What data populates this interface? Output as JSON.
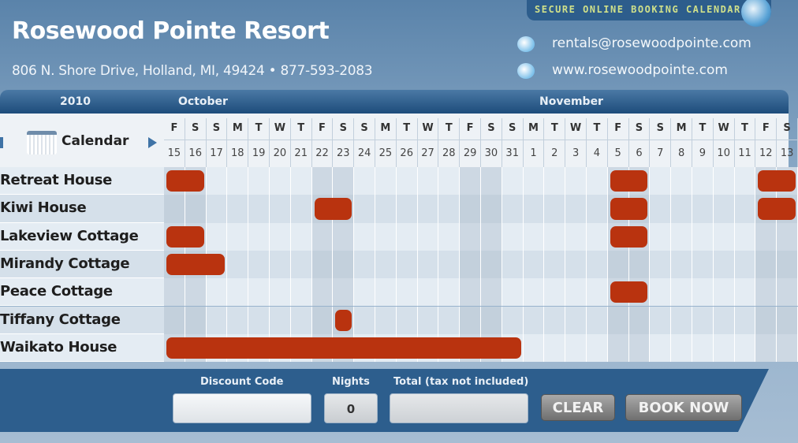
{
  "header": {
    "title": "Rosewood Pointe Resort",
    "address": "806 N. Shore Drive, Holland, MI, 49424 • 877-593-2083",
    "badge": "SECURE ONLINE BOOKING CALENDAR",
    "email": "rentals@rosewoodpointe.com",
    "website": "www.rosewoodpointe.com"
  },
  "calendar": {
    "year": "2010",
    "months": [
      "October",
      "November"
    ],
    "label": "Calendar",
    "days": [
      [
        "F",
        "15"
      ],
      [
        "S",
        "16"
      ],
      [
        "S",
        "17"
      ],
      [
        "M",
        "18"
      ],
      [
        "T",
        "19"
      ],
      [
        "W",
        "20"
      ],
      [
        "T",
        "21"
      ],
      [
        "F",
        "22"
      ],
      [
        "S",
        "23"
      ],
      [
        "S",
        "24"
      ],
      [
        "M",
        "25"
      ],
      [
        "T",
        "26"
      ],
      [
        "W",
        "27"
      ],
      [
        "T",
        "28"
      ],
      [
        "F",
        "29"
      ],
      [
        "S",
        "30"
      ],
      [
        "S",
        "31"
      ],
      [
        "M",
        "1"
      ],
      [
        "T",
        "2"
      ],
      [
        "W",
        "3"
      ],
      [
        "T",
        "4"
      ],
      [
        "F",
        "5"
      ],
      [
        "S",
        "6"
      ],
      [
        "S",
        "7"
      ],
      [
        "M",
        "8"
      ],
      [
        "T",
        "9"
      ],
      [
        "W",
        "10"
      ],
      [
        "T",
        "11"
      ],
      [
        "F",
        "12"
      ],
      [
        "S",
        "13"
      ]
    ],
    "properties": [
      {
        "name": "Retreat House",
        "booked": [
          [
            "Oct 15",
            "Oct 16"
          ],
          [
            "Nov 5",
            "Nov 6"
          ],
          [
            "Nov 12",
            "Nov 13"
          ]
        ]
      },
      {
        "name": "Kiwi House",
        "booked": [
          [
            "Oct 22",
            "Oct 23"
          ],
          [
            "Nov 5",
            "Nov 6"
          ],
          [
            "Nov 12",
            "Nov 13"
          ]
        ]
      },
      {
        "name": "Lakeview Cottage",
        "booked": [
          [
            "Oct 15",
            "Oct 16"
          ],
          [
            "Nov 5",
            "Nov 6"
          ]
        ]
      },
      {
        "name": "Mirandy Cottage",
        "booked": [
          [
            "Oct 15",
            "Oct 17"
          ]
        ]
      },
      {
        "name": "Peace Cottage",
        "booked": [
          [
            "Nov 5",
            "Nov 6"
          ]
        ]
      },
      {
        "name": "Tiffany Cottage",
        "booked": [
          [
            "Oct 23",
            "Oct 23"
          ]
        ]
      },
      {
        "name": "Waikato House",
        "booked": [
          [
            "Oct 15",
            "Oct 31"
          ]
        ]
      }
    ],
    "booked_color": "#b9330f"
  },
  "footer": {
    "discount_label": "Discount Code",
    "discount_value": "",
    "nights_label": "Nights",
    "nights_value": "0",
    "total_label": "Total (tax not included)",
    "total_value": "",
    "clear": "CLEAR",
    "book": "BOOK NOW"
  }
}
